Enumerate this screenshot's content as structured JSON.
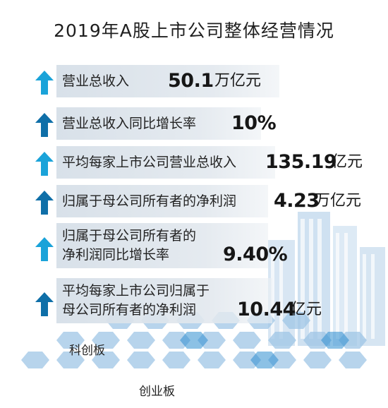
{
  "title": "2019年A股上市公司整体经营情况",
  "colors": {
    "arrow_light": "#1aa3d9",
    "arrow_dark": "#0f6fa8",
    "band": "#dbe3ea",
    "hex": "#9fc6e6"
  },
  "items": [
    {
      "label": "营业总收入",
      "value": "50.1",
      "unit": "万亿元"
    },
    {
      "label": "营业总收入同比增长率",
      "value": "10%",
      "unit": ""
    },
    {
      "label": "平均每家上市公司营业总收入",
      "value": "135.19",
      "unit": "亿元"
    },
    {
      "label": "归属于母公司所有者的净利润",
      "value": "4.23",
      "unit": "万亿元"
    },
    {
      "label_line1": "归属于母公司所有者的",
      "label_line2": "净利润同比增长率",
      "value": "9.40%",
      "unit": ""
    },
    {
      "label_line1": "平均每家上市公司归属于",
      "label_line2": "母公司所有者的净利润",
      "value": "10.44",
      "unit": "亿元"
    }
  ],
  "boards": {
    "star": "科创板",
    "chinext": "创业板"
  }
}
